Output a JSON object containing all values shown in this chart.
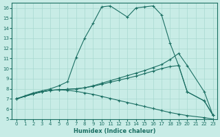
{
  "xlabel": "Humidex (Indice chaleur)",
  "xlim": [
    -0.5,
    23.5
  ],
  "ylim": [
    5,
    16.5
  ],
  "yticks": [
    5,
    6,
    7,
    8,
    9,
    10,
    11,
    12,
    13,
    14,
    15,
    16
  ],
  "xticks": [
    0,
    1,
    2,
    3,
    4,
    5,
    6,
    7,
    8,
    9,
    10,
    11,
    12,
    13,
    14,
    15,
    16,
    17,
    18,
    19,
    20,
    21,
    22,
    23
  ],
  "bg_color": "#c8ece6",
  "line_color": "#1a6e62",
  "grid_color": "#a8d8d0",
  "lines": [
    {
      "x": [
        0,
        1,
        2,
        3,
        4,
        5,
        6,
        7,
        8,
        9,
        10,
        11,
        13,
        14,
        15,
        16,
        17,
        18,
        19,
        20,
        22,
        23
      ],
      "y": [
        7,
        7.3,
        7.6,
        7.8,
        8.0,
        8.3,
        8.7,
        11.1,
        13.0,
        14.5,
        16.1,
        16.2,
        15.1,
        16.0,
        16.1,
        16.2,
        15.3,
        12.5,
        10.3,
        7.7,
        6.8,
        5.4
      ]
    },
    {
      "x": [
        0,
        2,
        3,
        4,
        5,
        6,
        7,
        8,
        9,
        10,
        11,
        12,
        13,
        14,
        15,
        16,
        17,
        18,
        19,
        20,
        22,
        23
      ],
      "y": [
        7,
        7.5,
        7.7,
        7.85,
        7.9,
        7.95,
        8.0,
        8.1,
        8.3,
        8.55,
        8.8,
        9.05,
        9.3,
        9.55,
        9.8,
        10.1,
        10.4,
        10.9,
        11.5,
        10.3,
        7.7,
        5.4
      ]
    },
    {
      "x": [
        0,
        2,
        3,
        4,
        5,
        6,
        7,
        8,
        9,
        10,
        11,
        12,
        13,
        14,
        15,
        16,
        17,
        18,
        19,
        20,
        22,
        23
      ],
      "y": [
        7,
        7.5,
        7.7,
        7.85,
        7.9,
        7.95,
        8.0,
        8.1,
        8.25,
        8.45,
        8.65,
        8.85,
        9.05,
        9.25,
        9.5,
        9.75,
        10.0,
        10.2,
        10.3,
        7.7,
        6.8,
        5.4
      ]
    },
    {
      "x": [
        0,
        2,
        3,
        4,
        5,
        6,
        7,
        8,
        9,
        10,
        11,
        12,
        13,
        14,
        15,
        16,
        17,
        18,
        19,
        20,
        22,
        23
      ],
      "y": [
        7,
        7.5,
        7.7,
        7.85,
        7.9,
        7.85,
        7.75,
        7.6,
        7.45,
        7.25,
        7.05,
        6.85,
        6.65,
        6.45,
        6.25,
        6.05,
        5.85,
        5.65,
        5.5,
        5.35,
        5.15,
        5.0
      ]
    }
  ]
}
